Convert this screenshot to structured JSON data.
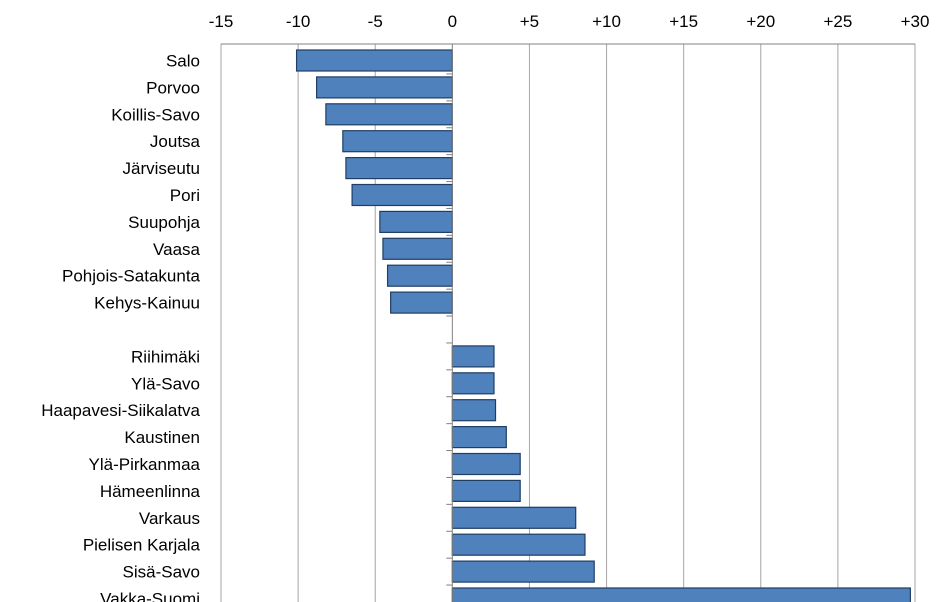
{
  "chart_data": {
    "type": "bar",
    "orientation": "horizontal",
    "title": "",
    "xlabel": "",
    "ylabel": "",
    "xlim": [
      -15,
      30
    ],
    "x_ticks": [
      -15,
      -10,
      -5,
      0,
      5,
      10,
      15,
      20,
      25,
      30
    ],
    "x_tick_labels": [
      "-15",
      "-10",
      "-5",
      "0",
      "+5",
      "+10",
      "+15",
      "+20",
      "+25",
      "+30"
    ],
    "axis_position": "top",
    "grid": "vertical",
    "bar_color": "#4f81bd",
    "groups": [
      {
        "categories": [
          "Salo",
          "Porvoo",
          "Koillis-Savo",
          "Joutsa",
          "Järviseutu",
          "Pori",
          "Suupohja",
          "Vaasa",
          "Pohjois-Satakunta",
          "Kehys-Kainuu"
        ],
        "values": [
          -10.1,
          -8.8,
          -8.2,
          -7.1,
          -6.9,
          -6.5,
          -4.7,
          -4.5,
          -4.2,
          -4.0
        ]
      },
      {
        "categories": [
          "Riihimäki",
          "Ylä-Savo",
          "Haapavesi-Siikalatva",
          "Kaustinen",
          "Ylä-Pirkanmaa",
          "Hämeenlinna",
          "Varkaus",
          "Pielisen Karjala",
          "Sisä-Savo",
          "Vakka-Suomi"
        ],
        "values": [
          2.7,
          2.7,
          2.8,
          3.5,
          4.4,
          4.4,
          8.0,
          8.6,
          9.2,
          29.7
        ]
      }
    ]
  }
}
